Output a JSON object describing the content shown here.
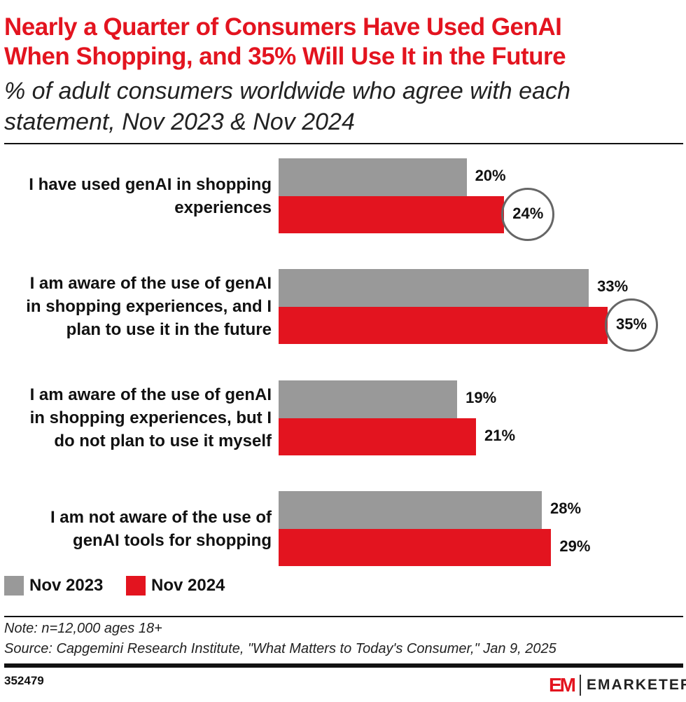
{
  "header": {
    "title_line1": "Nearly a Quarter of Consumers Have Used GenAI",
    "title_line2": "When Shopping, and 35% Will Use It in the Future",
    "subtitle_line1": "% of adult consumers worldwide who agree with each",
    "subtitle_line2": "statement, Nov 2023 & Nov 2024"
  },
  "chart_data": {
    "type": "bar",
    "orientation": "horizontal",
    "categories": [
      [
        "I have used genAI in shopping",
        "experiences"
      ],
      [
        "I am aware of the use of genAI",
        "in shopping experiences, and I",
        "plan to use it in the future"
      ],
      [
        "I am aware of the use of genAI",
        "in shopping experiences, but I",
        "do not plan to use it myself"
      ],
      [
        "I am not aware of the use of",
        "genAI tools for shopping"
      ]
    ],
    "series": [
      {
        "name": "Nov 2023",
        "color": "#999999",
        "values": [
          20,
          33,
          19,
          28
        ],
        "labels": [
          "20%",
          "33%",
          "19%",
          "28%"
        ]
      },
      {
        "name": "Nov 2024",
        "color": "#e3141f",
        "values": [
          24,
          35,
          21,
          29
        ],
        "labels": [
          "24%",
          "35%",
          "21%",
          "29%"
        ]
      }
    ],
    "highlighted": [
      "24%",
      "35%"
    ],
    "legend_position": "bottom-left",
    "grid": false,
    "xlim": [
      0,
      35
    ]
  },
  "footer": {
    "note": "Note: n=12,000 ages 18+",
    "source": "Source: Capgemini Research Institute, \"What Matters to Today's Consumer,\" Jan 9, 2025",
    "chart_id": "352479",
    "brand": "EMARKETER",
    "logo_mark": "EM"
  }
}
